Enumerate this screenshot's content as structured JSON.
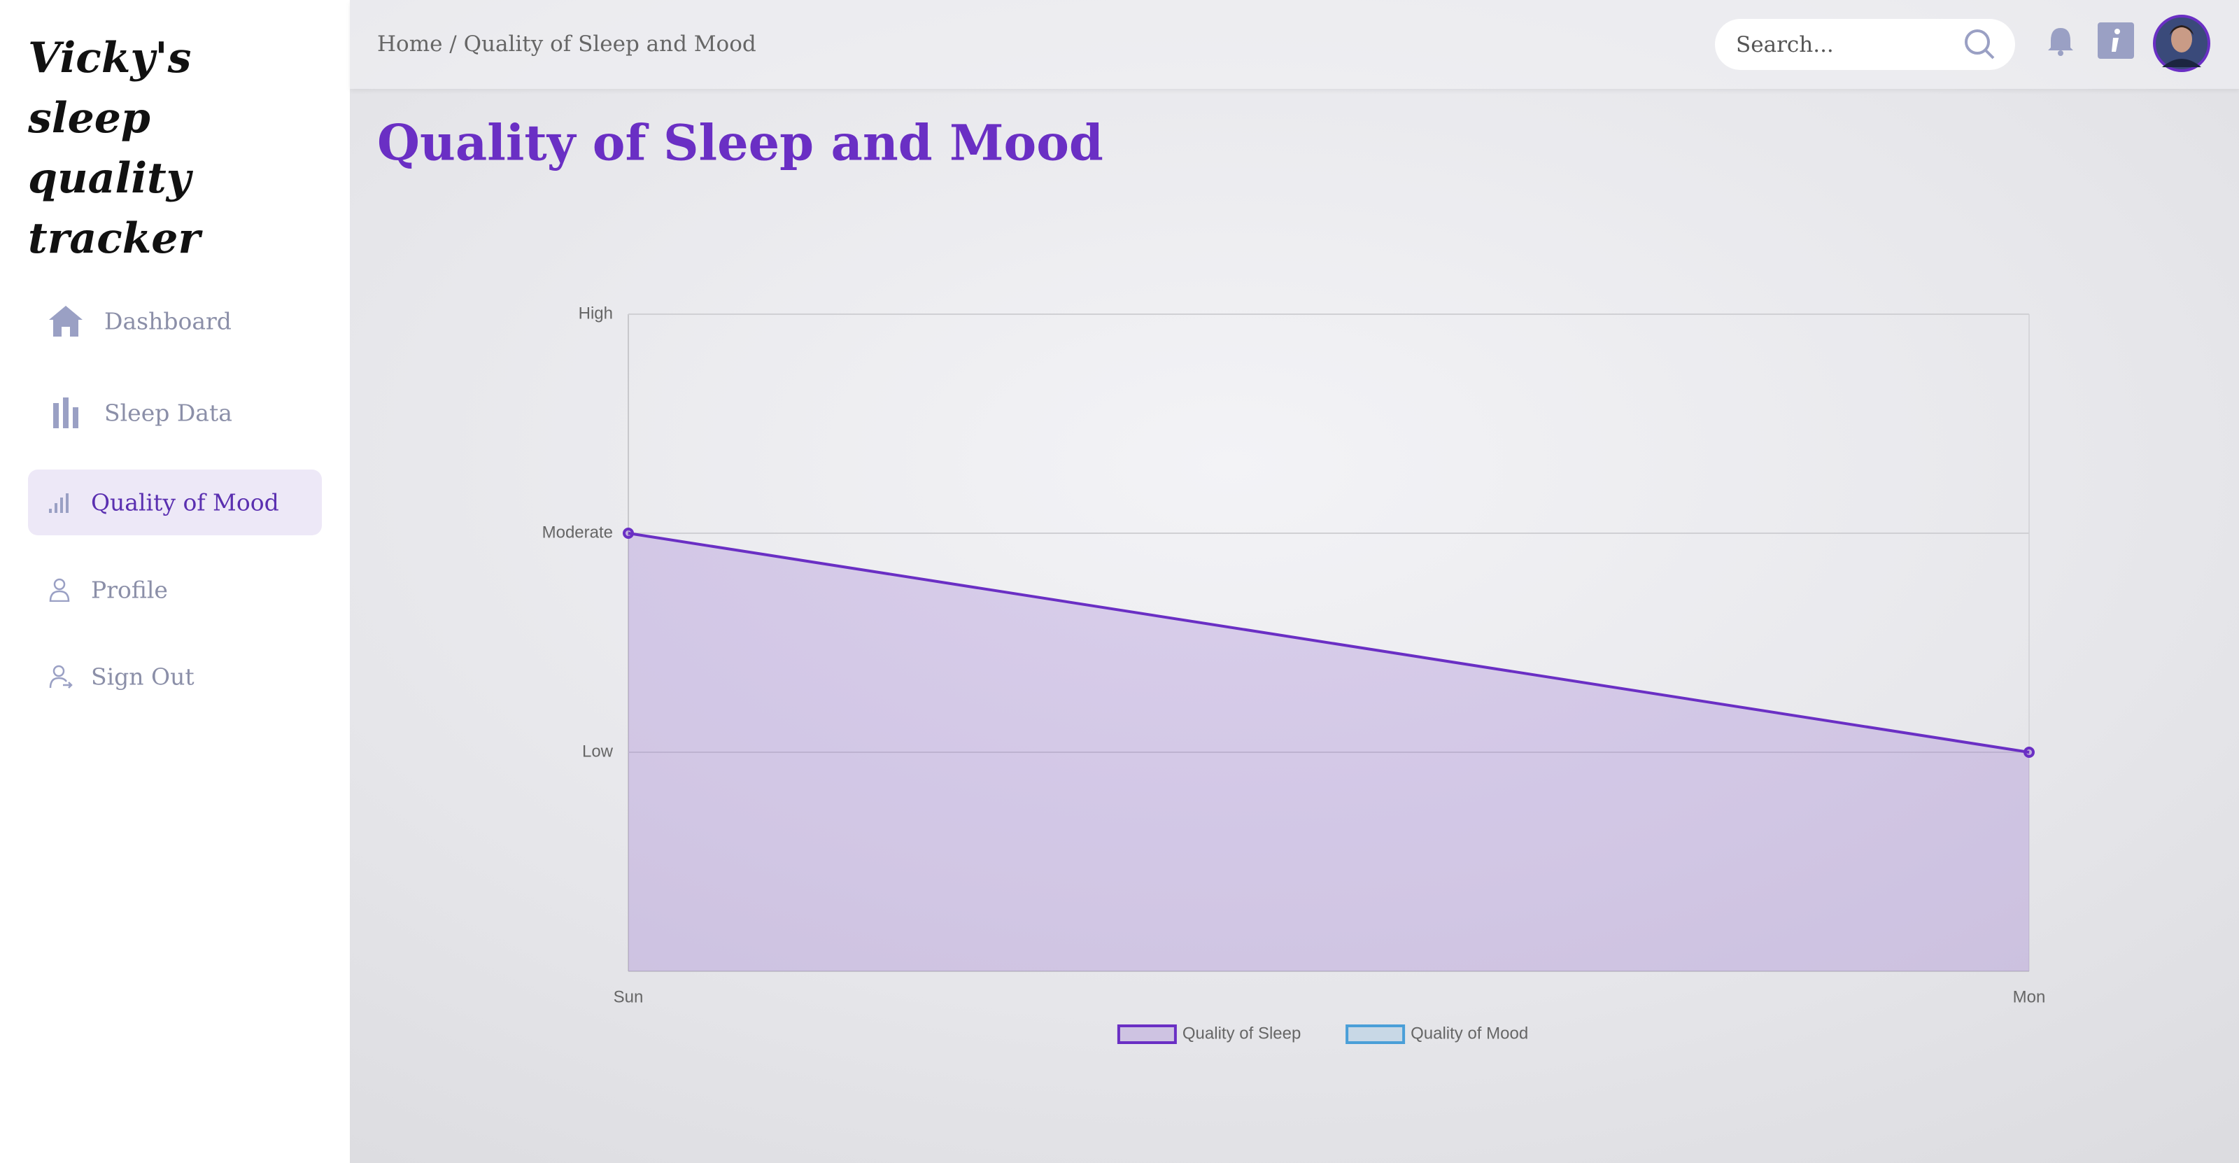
{
  "sidebar": {
    "title": "Vicky's sleep quality tracker",
    "nav": [
      "Dashboard",
      "Sleep Data",
      "Quality of Mood",
      "Profile",
      "Sign Out"
    ]
  },
  "header": {
    "breadcrumb": "Home / Quality of Sleep and Mood",
    "search_placeholder": "Search..."
  },
  "page_title": "Quality of Sleep and Mood",
  "chart_data": {
    "type": "line",
    "categories": [
      "Sun",
      "Mon"
    ],
    "series": [
      {
        "name": "Quality of Sleep",
        "color": "#6a2fc4",
        "values": [
          2,
          1
        ]
      },
      {
        "name": "Quality of Mood",
        "color": "#4a9fd8",
        "values": [
          null,
          null
        ]
      }
    ],
    "ylim": [
      0,
      3
    ],
    "yticks": [
      {
        "value": 1,
        "label": "Low"
      },
      {
        "value": 2,
        "label": "Moderate"
      },
      {
        "value": 3,
        "label": "High"
      }
    ],
    "grid": true,
    "fill": true,
    "legend": "bottom"
  }
}
